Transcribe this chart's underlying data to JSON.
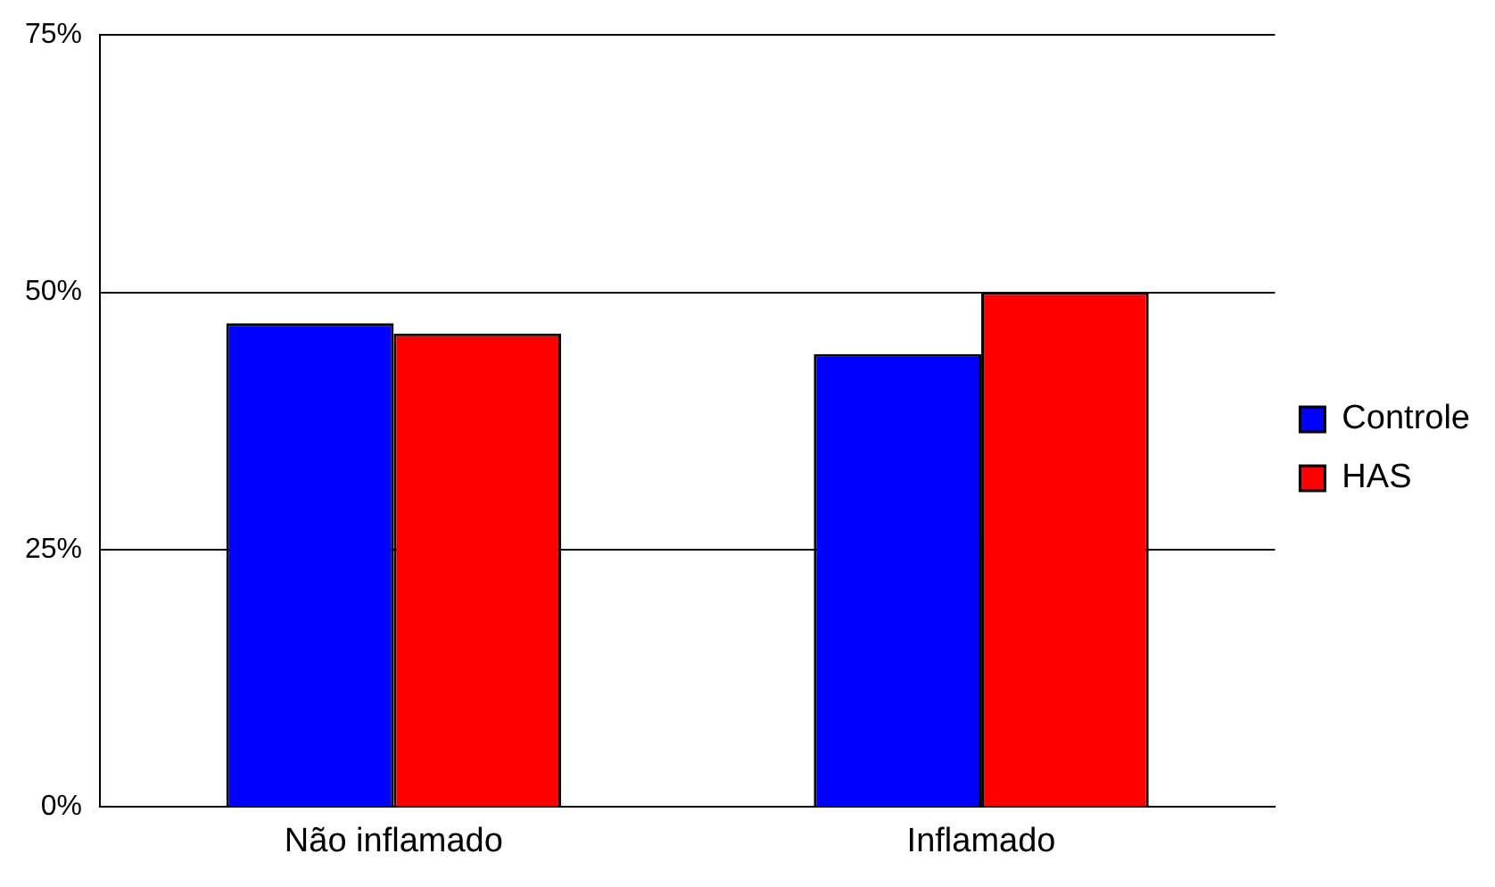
{
  "chart_data": {
    "type": "bar",
    "categories": [
      "Não inflamado",
      "Inflamado"
    ],
    "series": [
      {
        "name": "Controle",
        "color": "#0000ff",
        "values": [
          47,
          44
        ]
      },
      {
        "name": "HAS",
        "color": "#ff0000",
        "values": [
          46,
          50
        ]
      }
    ],
    "ylim": [
      0,
      75
    ],
    "yticks": [
      {
        "value": 0,
        "label": "0%"
      },
      {
        "value": 25,
        "label": "25%"
      },
      {
        "value": 50,
        "label": "50%"
      },
      {
        "value": 75,
        "label": "75%"
      }
    ],
    "grid": "y",
    "legend": "right"
  }
}
